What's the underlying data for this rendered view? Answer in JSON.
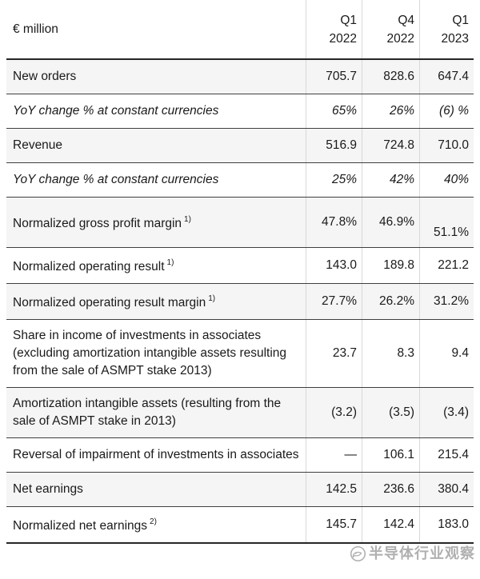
{
  "chart_data": {
    "type": "table",
    "unit_label": "€ million",
    "columns": [
      {
        "period": "Q1",
        "year": "2022"
      },
      {
        "period": "Q4",
        "year": "2022"
      },
      {
        "period": "Q1",
        "year": "2023"
      }
    ],
    "rows": [
      {
        "label": "New orders",
        "footnote": "",
        "values": [
          "705.7",
          "828.6",
          "647.4"
        ],
        "italic": false,
        "shaded": true,
        "tall": false
      },
      {
        "label": "YoY change % at constant currencies",
        "footnote": "",
        "values": [
          "65%",
          "26%",
          "(6) %"
        ],
        "italic": true,
        "shaded": false,
        "tall": false
      },
      {
        "label": "Revenue",
        "footnote": "",
        "values": [
          "516.9",
          "724.8",
          "710.0"
        ],
        "italic": false,
        "shaded": true,
        "tall": false
      },
      {
        "label": "YoY change % at constant currencies",
        "footnote": "",
        "values": [
          "25%",
          "42%",
          "40%"
        ],
        "italic": true,
        "shaded": false,
        "tall": false
      },
      {
        "label": "Normalized gross profit margin",
        "footnote": "1)",
        "values": [
          "47.8%",
          "46.9%",
          "51.1%"
        ],
        "italic": false,
        "shaded": true,
        "tall": true
      },
      {
        "label": "Normalized operating result",
        "footnote": "1)",
        "values": [
          "143.0",
          "189.8",
          "221.2"
        ],
        "italic": false,
        "shaded": false,
        "tall": false
      },
      {
        "label": "Normalized operating result margin",
        "footnote": "1)",
        "values": [
          "27.7%",
          "26.2%",
          "31.2%"
        ],
        "italic": false,
        "shaded": true,
        "tall": false
      },
      {
        "label": "Share in income of investments in associates (excluding amortization intangible assets resulting from the sale of ASMPT stake 2013)",
        "footnote": "",
        "values": [
          "23.7",
          "8.3",
          "9.4"
        ],
        "italic": false,
        "shaded": false,
        "tall": false
      },
      {
        "label": "Amortization intangible assets (resulting from the sale of ASMPT stake in 2013)",
        "footnote": "",
        "values": [
          "(3.2)",
          "(3.5)",
          "(3.4)"
        ],
        "italic": false,
        "shaded": true,
        "tall": false
      },
      {
        "label": "Reversal of impairment of investments in associates",
        "footnote": "",
        "values": [
          "—",
          "106.1",
          "215.4"
        ],
        "italic": false,
        "shaded": false,
        "tall": false
      },
      {
        "label": "Net earnings",
        "footnote": "",
        "values": [
          "142.5",
          "236.6",
          "380.4"
        ],
        "italic": false,
        "shaded": true,
        "tall": false
      },
      {
        "label": "Normalized net earnings",
        "footnote": "2)",
        "values": [
          "145.7",
          "142.4",
          "183.0"
        ],
        "italic": false,
        "shaded": false,
        "tall": false
      }
    ]
  },
  "watermark": {
    "text": "半导体行业观察"
  }
}
